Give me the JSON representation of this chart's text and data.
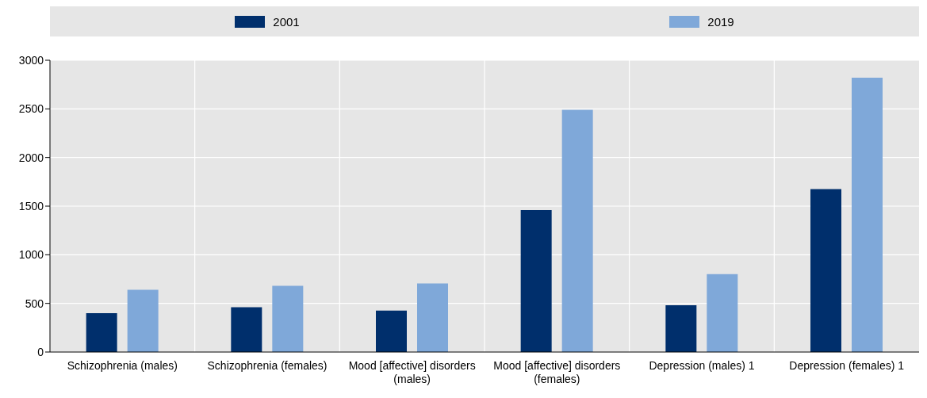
{
  "chart_data": {
    "type": "bar",
    "categories": [
      "Schizophrenia (males)",
      "Schizophrenia (females)",
      "Mood [affective] disorders (males)",
      "Mood [affective] disorders (females)",
      "Depression (males) 1",
      "Depression (females) 1"
    ],
    "series": [
      {
        "name": "2001",
        "color": "#002f6c",
        "values": [
          400,
          460,
          425,
          1460,
          480,
          1675
        ]
      },
      {
        "name": "2019",
        "color": "#7fa8d9",
        "values": [
          640,
          680,
          705,
          2490,
          800,
          2820
        ]
      }
    ],
    "ylim": [
      0,
      3000
    ],
    "yticks": [
      0,
      500,
      1000,
      1500,
      2000,
      2500,
      3000
    ],
    "grid": true,
    "legend": "top"
  }
}
